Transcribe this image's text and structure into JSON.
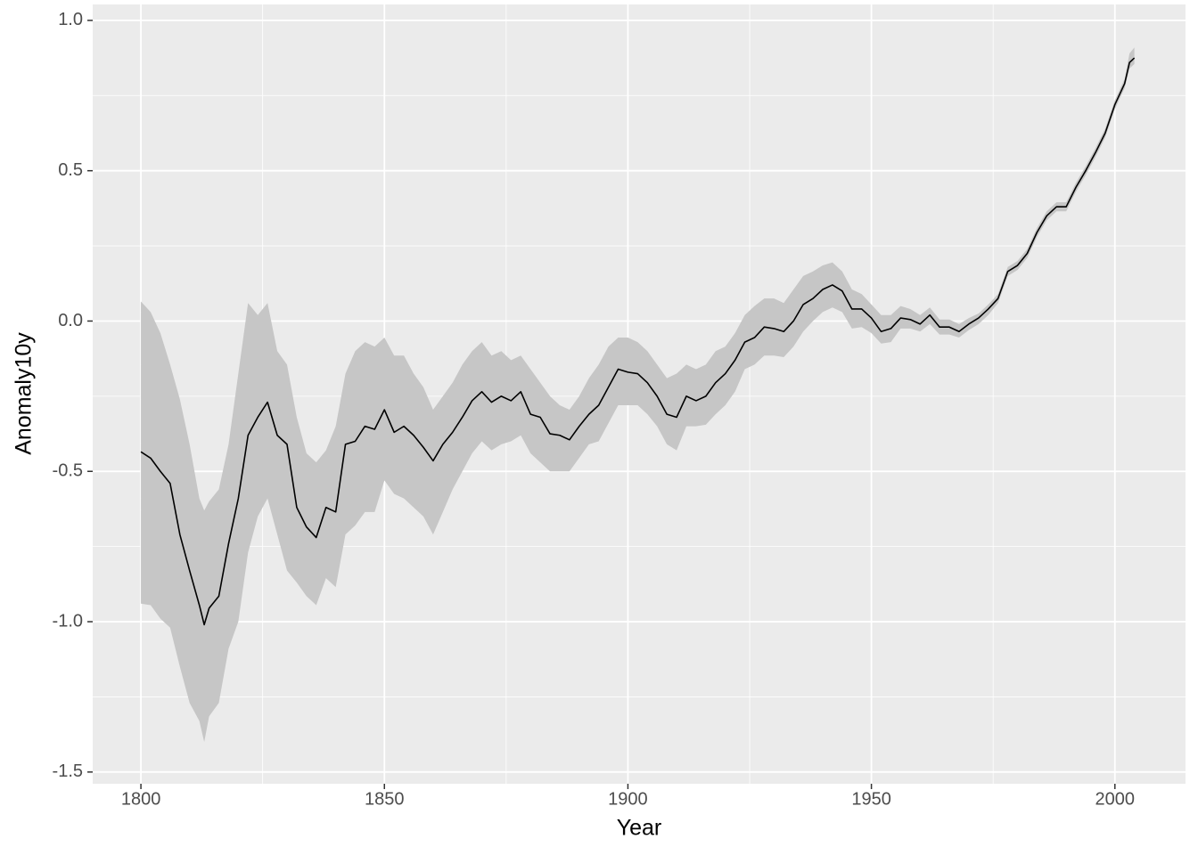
{
  "chart_data": {
    "type": "line",
    "xlabel": "Year",
    "ylabel": "Anomaly10y",
    "x": [
      1800,
      1802,
      1804,
      1806,
      1808,
      1810,
      1812,
      1813,
      1814,
      1816,
      1818,
      1820,
      1822,
      1824,
      1826,
      1828,
      1830,
      1832,
      1834,
      1836,
      1838,
      1840,
      1842,
      1844,
      1846,
      1848,
      1850,
      1852,
      1854,
      1856,
      1858,
      1860,
      1862,
      1864,
      1866,
      1868,
      1870,
      1872,
      1874,
      1876,
      1878,
      1880,
      1882,
      1884,
      1886,
      1888,
      1890,
      1892,
      1894,
      1896,
      1898,
      1900,
      1902,
      1904,
      1906,
      1908,
      1910,
      1912,
      1914,
      1916,
      1918,
      1920,
      1922,
      1924,
      1926,
      1928,
      1930,
      1932,
      1934,
      1936,
      1938,
      1940,
      1942,
      1944,
      1946,
      1948,
      1950,
      1952,
      1954,
      1956,
      1958,
      1960,
      1962,
      1964,
      1966,
      1968,
      1970,
      1972,
      1974,
      1976,
      1978,
      1980,
      1982,
      1984,
      1986,
      1988,
      1990,
      1992,
      1994,
      1996,
      1998,
      2000,
      2002,
      2003,
      2004
    ],
    "values": [
      -0.435,
      -0.456,
      -0.5,
      -0.54,
      -0.71,
      -0.83,
      -0.945,
      -1.01,
      -0.955,
      -0.915,
      -0.74,
      -0.59,
      -0.38,
      -0.32,
      -0.27,
      -0.38,
      -0.41,
      -0.62,
      -0.685,
      -0.72,
      -0.62,
      -0.635,
      -0.41,
      -0.4,
      -0.35,
      -0.36,
      -0.295,
      -0.37,
      -0.35,
      -0.38,
      -0.42,
      -0.465,
      -0.41,
      -0.37,
      -0.32,
      -0.265,
      -0.235,
      -0.27,
      -0.25,
      -0.265,
      -0.235,
      -0.31,
      -0.32,
      -0.375,
      -0.38,
      -0.395,
      -0.35,
      -0.31,
      -0.28,
      -0.22,
      -0.16,
      -0.17,
      -0.175,
      -0.205,
      -0.25,
      -0.31,
      -0.32,
      -0.25,
      -0.265,
      -0.25,
      -0.205,
      -0.175,
      -0.13,
      -0.07,
      -0.055,
      -0.02,
      -0.025,
      -0.035,
      0.0,
      0.055,
      0.075,
      0.105,
      0.12,
      0.1,
      0.04,
      0.04,
      0.01,
      -0.035,
      -0.025,
      0.01,
      0.005,
      -0.01,
      0.02,
      -0.02,
      -0.02,
      -0.035,
      -0.01,
      0.01,
      0.04,
      0.075,
      0.165,
      0.185,
      0.225,
      0.295,
      0.35,
      0.38,
      0.38,
      0.445,
      0.5,
      0.56,
      0.625,
      0.72,
      0.79,
      0.86,
      0.875
    ],
    "upper": [
      0.065,
      0.03,
      -0.04,
      -0.145,
      -0.26,
      -0.41,
      -0.59,
      -0.63,
      -0.6,
      -0.56,
      -0.41,
      -0.175,
      0.06,
      0.02,
      0.06,
      -0.1,
      -0.145,
      -0.32,
      -0.44,
      -0.47,
      -0.43,
      -0.35,
      -0.175,
      -0.1,
      -0.07,
      -0.085,
      -0.055,
      -0.115,
      -0.115,
      -0.175,
      -0.22,
      -0.295,
      -0.25,
      -0.205,
      -0.145,
      -0.1,
      -0.07,
      -0.115,
      -0.1,
      -0.13,
      -0.115,
      -0.16,
      -0.205,
      -0.25,
      -0.28,
      -0.295,
      -0.25,
      -0.19,
      -0.145,
      -0.085,
      -0.055,
      -0.055,
      -0.07,
      -0.1,
      -0.145,
      -0.19,
      -0.175,
      -0.145,
      -0.16,
      -0.145,
      -0.1,
      -0.085,
      -0.04,
      0.02,
      0.05,
      0.075,
      0.075,
      0.06,
      0.105,
      0.15,
      0.165,
      0.185,
      0.195,
      0.165,
      0.105,
      0.09,
      0.055,
      0.02,
      0.02,
      0.05,
      0.04,
      0.02,
      0.045,
      0.005,
      0.005,
      -0.01,
      0.01,
      0.025,
      0.055,
      0.09,
      0.18,
      0.2,
      0.24,
      0.31,
      0.365,
      0.395,
      0.395,
      0.46,
      0.515,
      0.575,
      0.64,
      0.735,
      0.805,
      0.89,
      0.91
    ],
    "lower": [
      -0.94,
      -0.945,
      -0.99,
      -1.02,
      -1.15,
      -1.27,
      -1.33,
      -1.4,
      -1.315,
      -1.27,
      -1.09,
      -1.0,
      -0.77,
      -0.65,
      -0.59,
      -0.71,
      -0.83,
      -0.87,
      -0.915,
      -0.945,
      -0.855,
      -0.885,
      -0.71,
      -0.68,
      -0.635,
      -0.635,
      -0.53,
      -0.575,
      -0.59,
      -0.62,
      -0.65,
      -0.71,
      -0.635,
      -0.56,
      -0.5,
      -0.44,
      -0.4,
      -0.43,
      -0.41,
      -0.4,
      -0.38,
      -0.44,
      -0.47,
      -0.5,
      -0.5,
      -0.5,
      -0.455,
      -0.41,
      -0.4,
      -0.34,
      -0.28,
      -0.28,
      -0.28,
      -0.31,
      -0.35,
      -0.41,
      -0.43,
      -0.35,
      -0.35,
      -0.345,
      -0.31,
      -0.28,
      -0.235,
      -0.16,
      -0.145,
      -0.115,
      -0.115,
      -0.12,
      -0.085,
      -0.035,
      0.0,
      0.03,
      0.045,
      0.03,
      -0.025,
      -0.02,
      -0.04,
      -0.075,
      -0.07,
      -0.025,
      -0.025,
      -0.035,
      -0.01,
      -0.045,
      -0.045,
      -0.055,
      -0.03,
      -0.01,
      0.02,
      0.06,
      0.15,
      0.17,
      0.21,
      0.28,
      0.335,
      0.365,
      0.365,
      0.43,
      0.485,
      0.545,
      0.61,
      0.705,
      0.775,
      0.84,
      0.855
    ],
    "color": "#000000",
    "ribbon_color": "#c6c6c6",
    "xlim": [
      1790.1,
      2014.5
    ],
    "ylim": [
      -1.539,
      1.053
    ],
    "xticks": [
      1800,
      1850,
      1900,
      1950,
      2000
    ],
    "yticks": [
      {
        "value": -1.5,
        "label": "-1.5"
      },
      {
        "value": -1.0,
        "label": "-1.0"
      },
      -0.5,
      {
        "value": 0.0,
        "label": "0.0"
      },
      0.5,
      {
        "value": 1.0,
        "label": "1.0"
      }
    ],
    "grid": true
  }
}
